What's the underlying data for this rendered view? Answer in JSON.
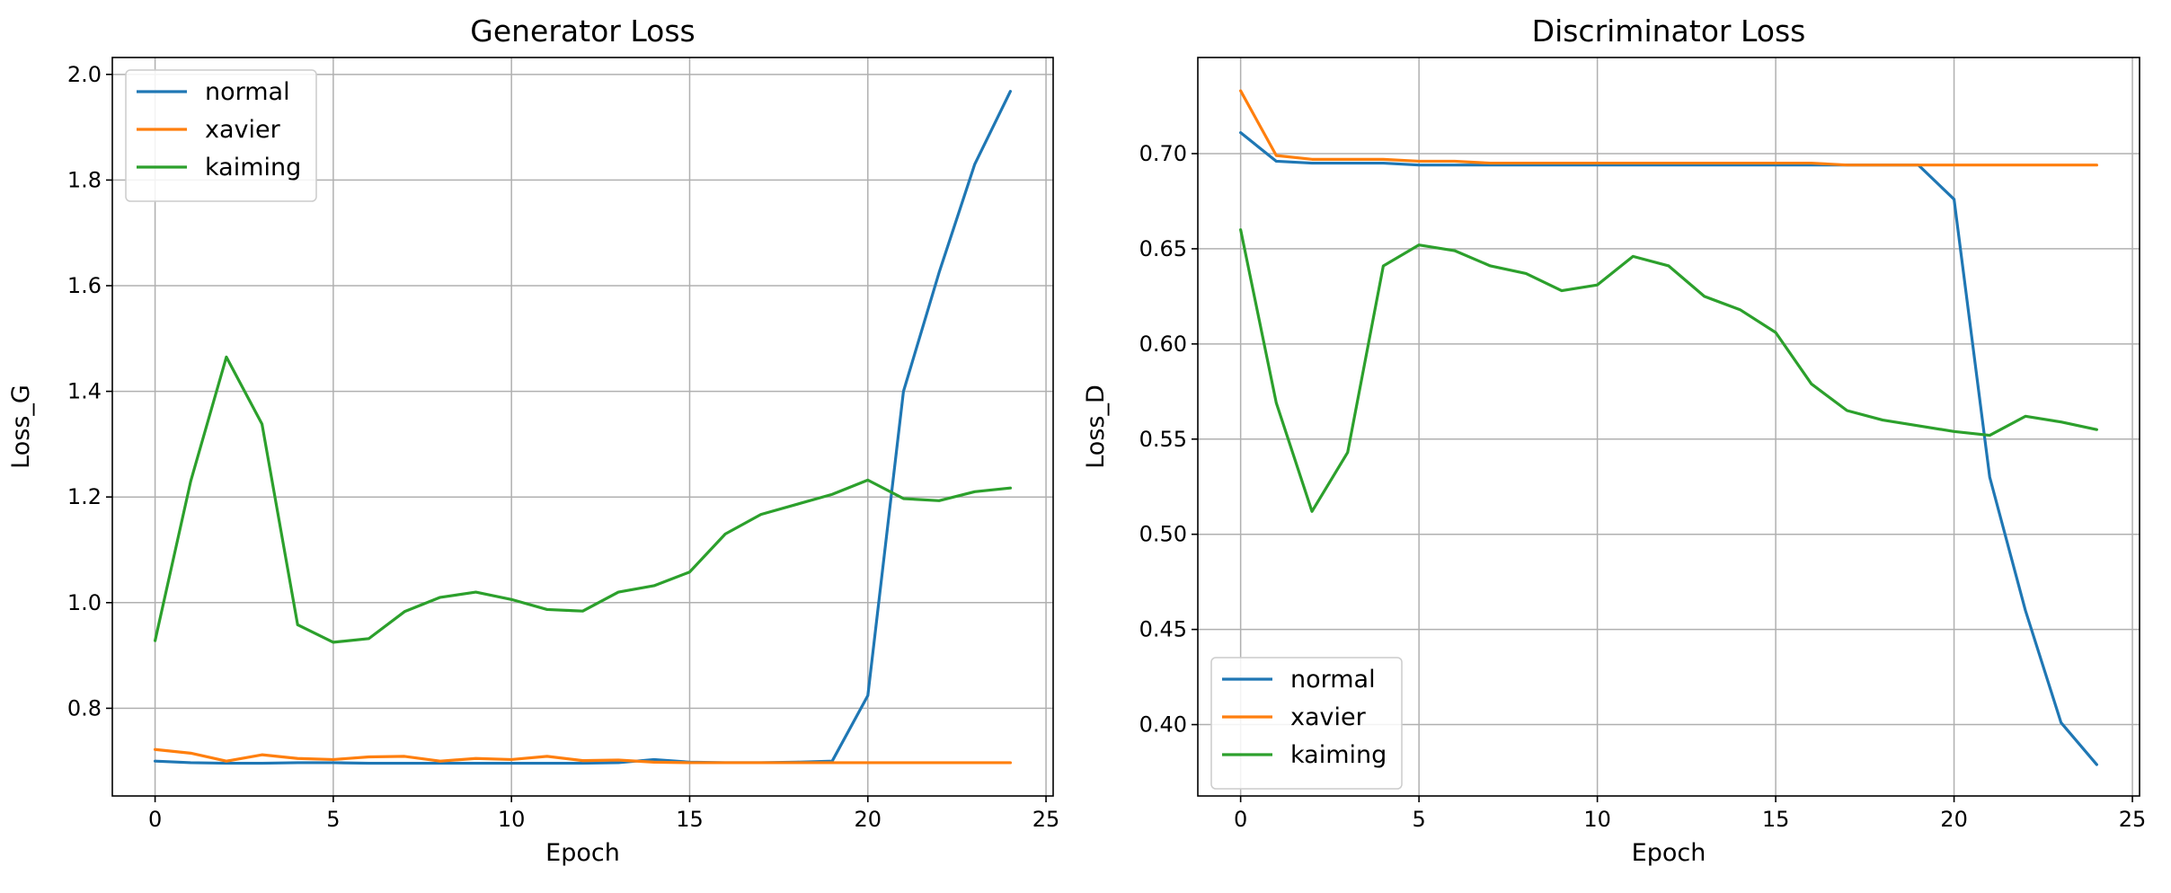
{
  "chart_data": [
    {
      "type": "line",
      "title": "Generator Loss",
      "xlabel": "Epoch",
      "ylabel": "Loss_G",
      "xlim": [
        -1.2,
        25.2
      ],
      "ylim": [
        0.634,
        2.032
      ],
      "xticks": [
        0,
        5,
        10,
        15,
        20,
        25
      ],
      "xtick_labels": [
        "0",
        "5",
        "10",
        "15",
        "20",
        "25"
      ],
      "yticks": [
        0.8,
        1.0,
        1.2,
        1.4,
        1.6,
        1.8,
        2.0
      ],
      "ytick_labels": [
        "0.8",
        "1.0",
        "1.2",
        "1.4",
        "1.6",
        "1.8",
        "2.0"
      ],
      "grid": true,
      "legend": "upper left",
      "x": [
        0,
        1,
        2,
        3,
        4,
        5,
        6,
        7,
        8,
        9,
        10,
        11,
        12,
        13,
        14,
        15,
        16,
        17,
        18,
        19,
        20,
        21,
        22,
        23,
        24
      ],
      "series": [
        {
          "name": "normal",
          "color": "#1f77b4",
          "values": [
            0.7,
            0.697,
            0.696,
            0.696,
            0.697,
            0.697,
            0.696,
            0.696,
            0.696,
            0.696,
            0.696,
            0.696,
            0.696,
            0.697,
            0.703,
            0.698,
            0.697,
            0.697,
            0.698,
            0.7,
            0.824,
            1.4,
            1.625,
            1.83,
            1.968
          ]
        },
        {
          "name": "xavier",
          "color": "#ff7f0e",
          "values": [
            0.722,
            0.715,
            0.7,
            0.712,
            0.705,
            0.703,
            0.708,
            0.709,
            0.7,
            0.705,
            0.703,
            0.709,
            0.701,
            0.702,
            0.698,
            0.697,
            0.697,
            0.697,
            0.697,
            0.697,
            0.697,
            0.697,
            0.697,
            0.697,
            0.697
          ]
        },
        {
          "name": "kaiming",
          "color": "#2ca02c",
          "values": [
            0.928,
            1.23,
            1.465,
            1.338,
            0.958,
            0.925,
            0.932,
            0.983,
            1.01,
            1.02,
            1.006,
            0.987,
            0.984,
            1.02,
            1.032,
            1.058,
            1.13,
            1.167,
            1.186,
            1.205,
            1.232,
            1.197,
            1.193,
            1.21,
            1.217
          ]
        }
      ]
    },
    {
      "type": "line",
      "title": "Discriminator Loss",
      "xlabel": "Epoch",
      "ylabel": "Loss_D",
      "xlim": [
        -1.2,
        25.2
      ],
      "ylim": [
        0.3625,
        0.7505
      ],
      "xticks": [
        0,
        5,
        10,
        15,
        20,
        25
      ],
      "xtick_labels": [
        "0",
        "5",
        "10",
        "15",
        "20",
        "25"
      ],
      "yticks": [
        0.4,
        0.45,
        0.5,
        0.55,
        0.6,
        0.65,
        0.7
      ],
      "ytick_labels": [
        "0.40",
        "0.45",
        "0.50",
        "0.55",
        "0.60",
        "0.65",
        "0.70"
      ],
      "grid": true,
      "legend": "lower left",
      "x": [
        0,
        1,
        2,
        3,
        4,
        5,
        6,
        7,
        8,
        9,
        10,
        11,
        12,
        13,
        14,
        15,
        16,
        17,
        18,
        19,
        20,
        21,
        22,
        23,
        24
      ],
      "series": [
        {
          "name": "normal",
          "color": "#1f77b4",
          "values": [
            0.711,
            0.696,
            0.695,
            0.695,
            0.695,
            0.694,
            0.694,
            0.694,
            0.694,
            0.694,
            0.694,
            0.694,
            0.694,
            0.694,
            0.694,
            0.694,
            0.694,
            0.694,
            0.694,
            0.694,
            0.676,
            0.53,
            0.46,
            0.401,
            0.379
          ]
        },
        {
          "name": "xavier",
          "color": "#ff7f0e",
          "values": [
            0.733,
            0.699,
            0.697,
            0.697,
            0.697,
            0.696,
            0.696,
            0.695,
            0.695,
            0.695,
            0.695,
            0.695,
            0.695,
            0.695,
            0.695,
            0.695,
            0.695,
            0.694,
            0.694,
            0.694,
            0.694,
            0.694,
            0.694,
            0.694,
            0.694
          ]
        },
        {
          "name": "kaiming",
          "color": "#2ca02c",
          "values": [
            0.66,
            0.569,
            0.512,
            0.543,
            0.641,
            0.652,
            0.649,
            0.641,
            0.637,
            0.628,
            0.631,
            0.646,
            0.641,
            0.625,
            0.618,
            0.606,
            0.579,
            0.565,
            0.56,
            0.557,
            0.554,
            0.552,
            0.562,
            0.559,
            0.555
          ]
        }
      ]
    }
  ]
}
